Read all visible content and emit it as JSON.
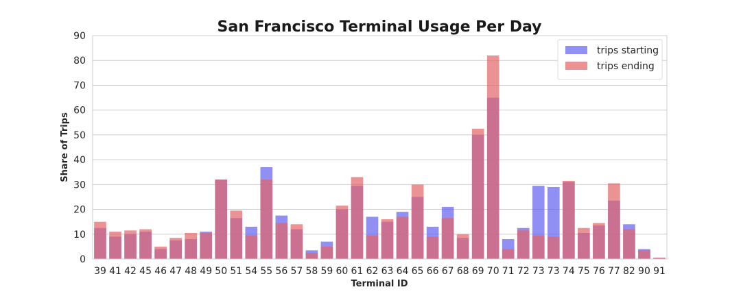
{
  "chart_data": {
    "type": "bar",
    "title": "San Francisco Terminal Usage Per Day",
    "xlabel": "Terminal ID",
    "ylabel": "Share of Trips",
    "ylim": [
      0,
      90
    ],
    "yticks": [
      0,
      10,
      20,
      30,
      40,
      50,
      60,
      70,
      80,
      90
    ],
    "grid": true,
    "legend_position": "top-right",
    "categories": [
      "39",
      "41",
      "42",
      "45",
      "46",
      "47",
      "48",
      "49",
      "50",
      "51",
      "54",
      "55",
      "56",
      "57",
      "58",
      "59",
      "60",
      "61",
      "62",
      "63",
      "64",
      "65",
      "66",
      "67",
      "68",
      "69",
      "70",
      "71",
      "72",
      "73",
      "73",
      "74",
      "75",
      "76",
      "77",
      "82",
      "90",
      "91"
    ],
    "series": [
      {
        "name": "trips starting",
        "color": "#6b6bf0",
        "values": [
          12.5,
          9.0,
          10.0,
          11.0,
          4.0,
          7.5,
          8.0,
          11.0,
          32.0,
          16.5,
          13.0,
          37.0,
          17.5,
          12.0,
          3.5,
          7.0,
          20.0,
          29.5,
          17.0,
          15.0,
          19.0,
          25.0,
          13.0,
          21.0,
          8.5,
          50.0,
          65.0,
          8.0,
          12.5,
          29.5,
          29.0,
          31.0,
          10.5,
          13.5,
          23.5,
          14.0,
          4.0,
          0.5
        ]
      },
      {
        "name": "trips ending",
        "color": "#e26466",
        "values": [
          15.0,
          11.0,
          11.5,
          12.0,
          5.0,
          8.5,
          10.5,
          10.5,
          32.0,
          19.5,
          9.5,
          32.0,
          14.5,
          14.0,
          2.5,
          5.0,
          21.5,
          33.0,
          9.5,
          16.0,
          17.0,
          30.0,
          9.0,
          16.5,
          10.0,
          52.5,
          82.0,
          4.0,
          11.5,
          9.5,
          9.0,
          31.5,
          12.5,
          14.5,
          30.5,
          12.0,
          3.5,
          0.5
        ]
      }
    ]
  }
}
